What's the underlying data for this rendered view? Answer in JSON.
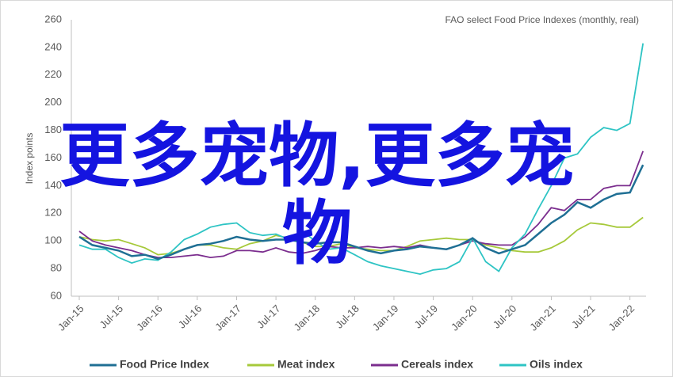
{
  "chart_data": {
    "type": "line",
    "title": "FAO select Food Price Indexes (monthly, real)",
    "y_label": "Index points",
    "categories": [
      "Jan-15",
      null,
      null,
      "Jul-15",
      null,
      null,
      "Jan-16",
      null,
      null,
      "Jul-16",
      null,
      null,
      "Jan-17",
      null,
      null,
      "Jul-17",
      null,
      null,
      "Jan-18",
      null,
      null,
      "Jul-18",
      null,
      null,
      "Jan-19",
      null,
      null,
      "Jul-19",
      null,
      null,
      "Jan-20",
      null,
      null,
      "Jul-20",
      null,
      null,
      "Jan-21",
      null,
      null,
      "Jul-21",
      null,
      null,
      "Jan-22",
      null
    ],
    "ylim": [
      60,
      260
    ],
    "yticks": [
      60,
      80,
      100,
      120,
      140,
      160,
      180,
      200,
      220,
      240,
      260
    ],
    "grid": false,
    "series": [
      {
        "name": "Food Price Index",
        "color": "#1f6f94",
        "values": [
          103,
          97,
          95,
          93,
          89,
          90,
          87,
          90,
          94,
          97,
          98,
          100,
          103,
          101,
          100,
          101,
          101,
          99,
          98,
          99,
          99,
          96,
          93,
          91,
          93,
          94,
          96,
          95,
          94,
          97,
          102,
          95,
          91,
          94,
          97,
          105,
          113,
          119,
          128,
          124,
          130,
          134,
          135,
          155
        ]
      },
      {
        "name": "Meat index",
        "color": "#a6c93a",
        "values": [
          103,
          101,
          100,
          101,
          98,
          95,
          90,
          91,
          94,
          97,
          97,
          95,
          94,
          98,
          100,
          104,
          102,
          99,
          96,
          96,
          98,
          95,
          94,
          93,
          93,
          96,
          100,
          101,
          102,
          101,
          101,
          97,
          95,
          93,
          92,
          92,
          95,
          100,
          108,
          113,
          112,
          110,
          110,
          117
        ]
      },
      {
        "name": "Cereals index",
        "color": "#7b2d8e",
        "values": [
          107,
          100,
          97,
          95,
          93,
          90,
          88,
          88,
          89,
          90,
          88,
          89,
          93,
          93,
          92,
          95,
          92,
          91,
          93,
          96,
          95,
          95,
          96,
          95,
          96,
          95,
          97,
          95,
          94,
          97,
          100,
          98,
          97,
          97,
          103,
          112,
          124,
          122,
          130,
          130,
          138,
          140,
          140,
          165
        ]
      },
      {
        "name": "Oils index",
        "color": "#2ec4c4",
        "values": [
          97,
          94,
          94,
          88,
          84,
          87,
          86,
          92,
          101,
          105,
          110,
          112,
          113,
          106,
          104,
          105,
          101,
          107,
          100,
          94,
          95,
          90,
          85,
          82,
          80,
          78,
          76,
          79,
          80,
          85,
          102,
          85,
          78,
          95,
          105,
          123,
          140,
          160,
          163,
          175,
          182,
          180,
          185,
          243
        ]
      }
    ],
    "legend": "bottom"
  },
  "overlay_text": "更多宠物,更多宠物"
}
